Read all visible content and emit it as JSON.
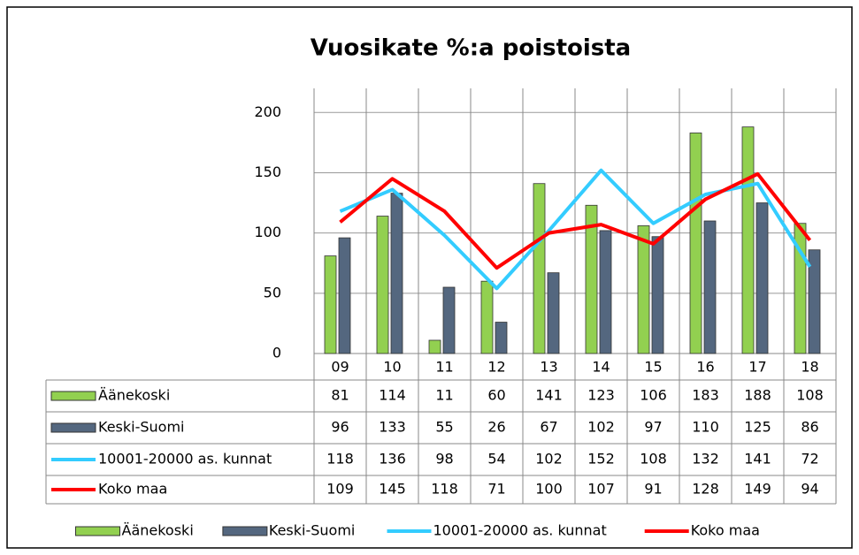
{
  "chart_data": {
    "type": "bar_line_table",
    "title": "Vuosikate %:a poistoista",
    "categories": [
      "09",
      "10",
      "11",
      "12",
      "13",
      "14",
      "15",
      "16",
      "17",
      "18"
    ],
    "series": [
      {
        "name": "Äänekoski",
        "type": "bar",
        "color": "#92d050",
        "values": [
          81,
          114,
          11,
          60,
          141,
          123,
          106,
          183,
          188,
          108
        ]
      },
      {
        "name": "Keski-Suomi",
        "type": "bar",
        "color": "#54677f",
        "values": [
          96,
          133,
          55,
          26,
          67,
          102,
          97,
          110,
          125,
          86
        ]
      },
      {
        "name": "10001-20000 as. kunnat",
        "type": "line",
        "color": "#33ccff",
        "values": [
          118,
          136,
          98,
          54,
          102,
          152,
          108,
          132,
          141,
          72
        ]
      },
      {
        "name": "Koko maa",
        "type": "line",
        "color": "#ff0000",
        "values": [
          109,
          145,
          118,
          71,
          100,
          107,
          91,
          128,
          149,
          94
        ]
      }
    ],
    "ylim": [
      0,
      220
    ],
    "yticks": [
      0,
      50,
      100,
      150,
      200
    ],
    "grid": true,
    "data_table": true,
    "legend": "bottom"
  }
}
